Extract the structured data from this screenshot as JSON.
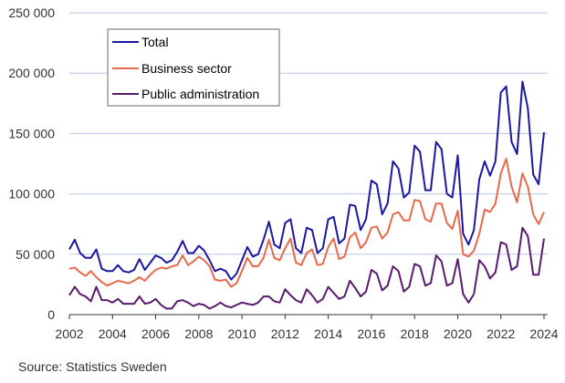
{
  "chart_data": {
    "type": "line",
    "title": "",
    "xlabel": "",
    "ylabel": "",
    "xlim": [
      2002,
      2024
    ],
    "ylim": [
      0,
      250000
    ],
    "yticks": [
      0,
      50000,
      100000,
      150000,
      200000,
      250000
    ],
    "ytick_labels": [
      "0",
      "50 000",
      "100 000",
      "150 000",
      "200 000",
      "250 000"
    ],
    "xticks": [
      2002,
      2004,
      2006,
      2008,
      2010,
      2012,
      2014,
      2016,
      2018,
      2020,
      2022,
      2024
    ],
    "xtick_labels": [
      "2002",
      "2004",
      "2006",
      "2008",
      "2010",
      "2012",
      "2014",
      "2016",
      "2018",
      "2020",
      "2022",
      "2024"
    ],
    "grid": "horizontal",
    "legend_position": "top-left",
    "series": [
      {
        "name": "Total",
        "color": "#1a17a0",
        "x": [
          2002.0,
          2002.25,
          2002.5,
          2002.75,
          2003.0,
          2003.25,
          2003.5,
          2003.75,
          2004.0,
          2004.25,
          2004.5,
          2004.75,
          2005.0,
          2005.25,
          2005.5,
          2005.75,
          2006.0,
          2006.25,
          2006.5,
          2006.75,
          2007.0,
          2007.25,
          2007.5,
          2007.75,
          2008.0,
          2008.25,
          2008.5,
          2008.75,
          2009.0,
          2009.25,
          2009.5,
          2009.75,
          2010.0,
          2010.25,
          2010.5,
          2010.75,
          2011.0,
          2011.25,
          2011.5,
          2011.75,
          2012.0,
          2012.25,
          2012.5,
          2012.75,
          2013.0,
          2013.25,
          2013.5,
          2013.75,
          2014.0,
          2014.25,
          2014.5,
          2014.75,
          2015.0,
          2015.25,
          2015.5,
          2015.75,
          2016.0,
          2016.25,
          2016.5,
          2016.75,
          2017.0,
          2017.25,
          2017.5,
          2017.75,
          2018.0,
          2018.25,
          2018.5,
          2018.75,
          2019.0,
          2019.25,
          2019.5,
          2019.75,
          2020.0,
          2020.25,
          2020.5,
          2020.75,
          2021.0,
          2021.25,
          2021.5,
          2021.75,
          2022.0,
          2022.25,
          2022.5,
          2022.75,
          2023.0,
          2023.25,
          2023.5,
          2023.75,
          2024.0
        ],
        "values": [
          54000,
          62000,
          51000,
          47000,
          47000,
          54000,
          38000,
          36000,
          36000,
          41000,
          36000,
          35000,
          37000,
          46000,
          37000,
          43000,
          49000,
          47000,
          43000,
          45000,
          52000,
          61000,
          51000,
          51000,
          57000,
          53000,
          45000,
          36000,
          38000,
          36000,
          29000,
          34000,
          45000,
          56000,
          48000,
          50000,
          62000,
          77000,
          58000,
          55000,
          76000,
          79000,
          55000,
          51000,
          72000,
          70000,
          51000,
          55000,
          79000,
          81000,
          59000,
          63000,
          91000,
          90000,
          70000,
          79000,
          111000,
          108000,
          83000,
          92000,
          127000,
          121000,
          97000,
          101000,
          140000,
          135000,
          103000,
          103000,
          143000,
          137000,
          100000,
          97000,
          132000,
          67000,
          58000,
          70000,
          112000,
          127000,
          115000,
          127000,
          184000,
          189000,
          143000,
          133000,
          193000,
          171000,
          116000,
          108000,
          151000
        ]
      },
      {
        "name": "Business sector",
        "color": "#e8694a",
        "x": [
          2002.0,
          2002.25,
          2002.5,
          2002.75,
          2003.0,
          2003.25,
          2003.5,
          2003.75,
          2004.0,
          2004.25,
          2004.5,
          2004.75,
          2005.0,
          2005.25,
          2005.5,
          2005.75,
          2006.0,
          2006.25,
          2006.5,
          2006.75,
          2007.0,
          2007.25,
          2007.5,
          2007.75,
          2008.0,
          2008.25,
          2008.5,
          2008.75,
          2009.0,
          2009.25,
          2009.5,
          2009.75,
          2010.0,
          2010.25,
          2010.5,
          2010.75,
          2011.0,
          2011.25,
          2011.5,
          2011.75,
          2012.0,
          2012.25,
          2012.5,
          2012.75,
          2013.0,
          2013.25,
          2013.5,
          2013.75,
          2014.0,
          2014.25,
          2014.5,
          2014.75,
          2015.0,
          2015.25,
          2015.5,
          2015.75,
          2016.0,
          2016.25,
          2016.5,
          2016.75,
          2017.0,
          2017.25,
          2017.5,
          2017.75,
          2018.0,
          2018.25,
          2018.5,
          2018.75,
          2019.0,
          2019.25,
          2019.5,
          2019.75,
          2020.0,
          2020.25,
          2020.5,
          2020.75,
          2021.0,
          2021.25,
          2021.5,
          2021.75,
          2022.0,
          2022.25,
          2022.5,
          2022.75,
          2023.0,
          2023.25,
          2023.5,
          2023.75,
          2024.0
        ],
        "values": [
          38000,
          39000,
          35000,
          32000,
          36000,
          31000,
          27000,
          24000,
          26000,
          28000,
          27000,
          26000,
          28000,
          31000,
          28000,
          33000,
          37000,
          39000,
          38000,
          40000,
          41000,
          49000,
          41000,
          44000,
          48000,
          45000,
          40000,
          29000,
          28000,
          29000,
          23000,
          26000,
          36000,
          47000,
          40000,
          40000,
          47000,
          62000,
          47000,
          45000,
          55000,
          63000,
          43000,
          41000,
          51000,
          54000,
          41000,
          42000,
          56000,
          63000,
          46000,
          48000,
          64000,
          68000,
          55000,
          60000,
          72000,
          73000,
          63000,
          68000,
          83000,
          85000,
          78000,
          78000,
          95000,
          94000,
          79000,
          77000,
          92000,
          92000,
          76000,
          71000,
          86000,
          50000,
          48000,
          53000,
          67000,
          87000,
          85000,
          92000,
          117000,
          129000,
          106000,
          93000,
          117000,
          106000,
          83000,
          75000,
          85000
        ]
      },
      {
        "name": "Public administration",
        "color": "#5a1a6e",
        "x": [
          2002.0,
          2002.25,
          2002.5,
          2002.75,
          2003.0,
          2003.25,
          2003.5,
          2003.75,
          2004.0,
          2004.25,
          2004.5,
          2004.75,
          2005.0,
          2005.25,
          2005.5,
          2005.75,
          2006.0,
          2006.25,
          2006.5,
          2006.75,
          2007.0,
          2007.25,
          2007.5,
          2007.75,
          2008.0,
          2008.25,
          2008.5,
          2008.75,
          2009.0,
          2009.25,
          2009.5,
          2009.75,
          2010.0,
          2010.25,
          2010.5,
          2010.75,
          2011.0,
          2011.25,
          2011.5,
          2011.75,
          2012.0,
          2012.25,
          2012.5,
          2012.75,
          2013.0,
          2013.25,
          2013.5,
          2013.75,
          2014.0,
          2014.25,
          2014.5,
          2014.75,
          2015.0,
          2015.25,
          2015.5,
          2015.75,
          2016.0,
          2016.25,
          2016.5,
          2016.75,
          2017.0,
          2017.25,
          2017.5,
          2017.75,
          2018.0,
          2018.25,
          2018.5,
          2018.75,
          2019.0,
          2019.25,
          2019.5,
          2019.75,
          2020.0,
          2020.25,
          2020.5,
          2020.75,
          2021.0,
          2021.25,
          2021.5,
          2021.75,
          2022.0,
          2022.25,
          2022.5,
          2022.75,
          2023.0,
          2023.25,
          2023.5,
          2023.75,
          2024.0
        ],
        "values": [
          16000,
          23000,
          17000,
          15000,
          11000,
          23000,
          12000,
          12000,
          10000,
          13000,
          9000,
          9000,
          9000,
          15000,
          9000,
          10000,
          13000,
          8000,
          5000,
          5000,
          11000,
          12000,
          10000,
          7000,
          9000,
          8000,
          5000,
          7000,
          10000,
          7000,
          6000,
          8000,
          10000,
          9000,
          8000,
          10000,
          15000,
          15000,
          11000,
          10000,
          21000,
          16000,
          12000,
          10000,
          21000,
          16000,
          10000,
          13000,
          23000,
          18000,
          13000,
          15000,
          28000,
          22000,
          15000,
          19000,
          37000,
          34000,
          20000,
          24000,
          40000,
          36000,
          19000,
          23000,
          42000,
          40000,
          24000,
          26000,
          49000,
          44000,
          24000,
          26000,
          46000,
          17000,
          10000,
          17000,
          45000,
          40000,
          30000,
          35000,
          60000,
          58000,
          37000,
          40000,
          72000,
          65000,
          33000,
          33000,
          63000
        ]
      }
    ]
  },
  "source": "Source: Statistics Sweden"
}
